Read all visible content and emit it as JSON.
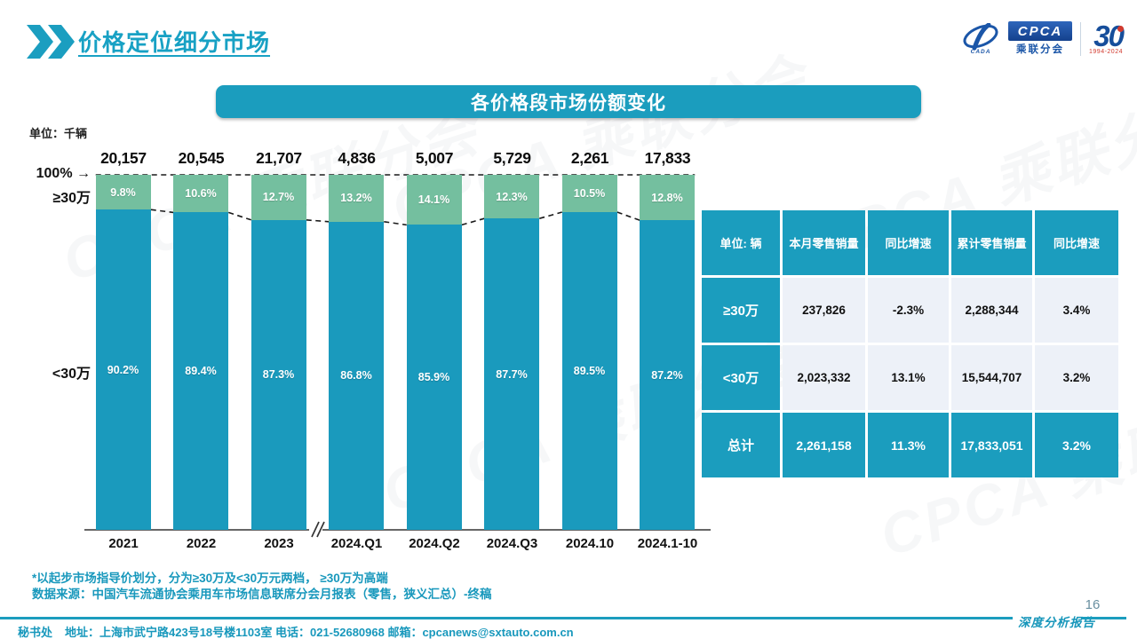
{
  "header": {
    "title": "价格定位细分市场"
  },
  "logo": {
    "acronym": "CPCA",
    "cn_name": "乘联分会",
    "sub_text": "CADA",
    "anniversary_number": "30",
    "anniversary_years": "1994-2024"
  },
  "banner": {
    "title": "各价格段市场份额变化"
  },
  "watermark_text": "CPCA 乘联分会",
  "chart_data": {
    "type": "bar",
    "stacked": true,
    "unit_label": "单位：千辆",
    "axis_100_label": "100%",
    "categories": [
      "2021",
      "2022",
      "2023",
      "2024.Q1",
      "2024.Q2",
      "2024.Q3",
      "2024.10",
      "2024.1-10"
    ],
    "totals": [
      "20,157",
      "20,545",
      "21,707",
      "4,836",
      "5,007",
      "5,729",
      "2,261",
      "17,833"
    ],
    "series": [
      {
        "name": "≥30万",
        "color": "#74BF9F",
        "values": [
          9.8,
          10.6,
          12.7,
          13.2,
          14.1,
          12.3,
          10.5,
          12.8
        ]
      },
      {
        "name": "<30万",
        "color": "#1A9ABD",
        "values": [
          90.2,
          89.4,
          87.3,
          86.8,
          85.9,
          87.7,
          89.5,
          87.2
        ]
      }
    ],
    "ylim": [
      0,
      100
    ],
    "grid": false,
    "legend_position": "left-annotations",
    "axis_break_between": [
      "2023",
      "2024.Q1"
    ]
  },
  "table": {
    "headers": [
      "单位: 辆",
      "本月零售销量",
      "同比增速",
      "累计零售销量",
      "同比增速"
    ],
    "rows": [
      {
        "label": "≥30万",
        "cells": [
          "237,826",
          "-2.3%",
          "2,288,344",
          "3.4%"
        ],
        "is_total": false
      },
      {
        "label": "<30万",
        "cells": [
          "2,023,332",
          "13.1%",
          "15,544,707",
          "3.2%"
        ],
        "is_total": false
      },
      {
        "label": "总计",
        "cells": [
          "2,261,158",
          "11.3%",
          "17,833,051",
          "3.2%"
        ],
        "is_total": true
      }
    ]
  },
  "notes": {
    "line1": "*以起步市场指导价划分，分为≥30万及<30万元两档， ≥30万为高端",
    "line2": "数据来源：中国汽车流通协会乘用车市场信息联席分会月报表（零售，狭义汇总）-终稿"
  },
  "footer": {
    "secretariat": "秘书处",
    "address": "地址：上海市武宁路423号18号楼1103室  电话：021-52680968   邮箱：cpcanews@sxtauto.com.cn",
    "report_label": "深度分析报告",
    "page_number": "16"
  },
  "colors": {
    "teal": "#1B9DBE",
    "green": "#74BF9F",
    "table_cell_bg": "#EDF1F8",
    "accent_blue": "#1B56A8"
  }
}
